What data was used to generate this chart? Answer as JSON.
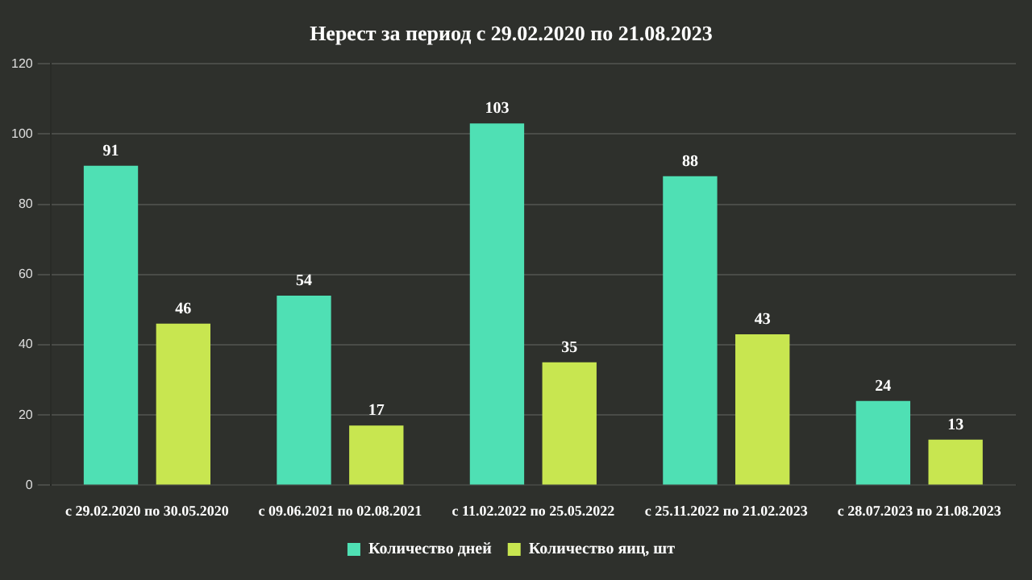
{
  "chart_data": {
    "type": "bar",
    "title": "Нерест за период с 29.02.2020 по 21.08.2023",
    "categories": [
      "с 29.02.2020 по 30.05.2020",
      "с 09.06.2021 по 02.08.2021",
      "с 11.02.2022 по 25.05.2022",
      "с 25.11.2022 по 21.02.2023",
      "с 28.07.2023 по 21.08.2023"
    ],
    "series": [
      {
        "name": "Количество дней",
        "color": "#4fe0b4",
        "values": [
          91,
          54,
          103,
          88,
          24
        ]
      },
      {
        "name": "Количество яиц, шт",
        "color": "#c8e650",
        "values": [
          46,
          17,
          35,
          43,
          13
        ]
      }
    ],
    "ylim": [
      0,
      120
    ],
    "yticks": [
      0,
      20,
      40,
      60,
      80,
      100,
      120
    ],
    "grid": "y",
    "legend": "bottom",
    "data_labels": true
  }
}
